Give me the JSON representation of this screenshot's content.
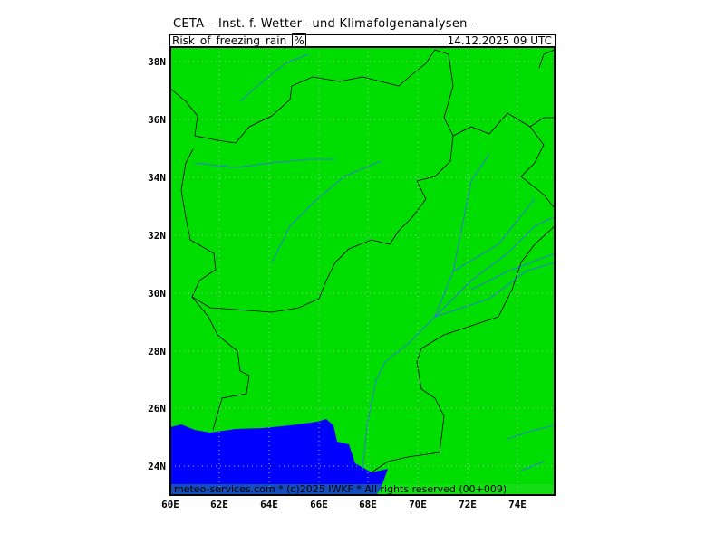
{
  "header": {
    "title": "CETA – Inst. f. Wetter– und Klimafolgenanalysen –",
    "variable": "Risk_of_freezing_rain_",
    "unit": "%",
    "valid_time": "14.12.2025 09 UTC"
  },
  "footer": {
    "credit": "meteo-services.com * (c)2025 IWKF * All rights reserved (00+009)"
  },
  "map": {
    "land_color": "#00dd00",
    "sea_color": "#0000ff",
    "border_color": "#000000",
    "river_color": "#3366ff",
    "grid": "dotted"
  },
  "axes": {
    "lat_ticks": [
      "38N",
      "36N",
      "34N",
      "32N",
      "30N",
      "28N",
      "26N",
      "24N"
    ],
    "lon_ticks": [
      "60E",
      "62E",
      "64E",
      "66E",
      "68E",
      "70E",
      "72E",
      "74E"
    ]
  }
}
